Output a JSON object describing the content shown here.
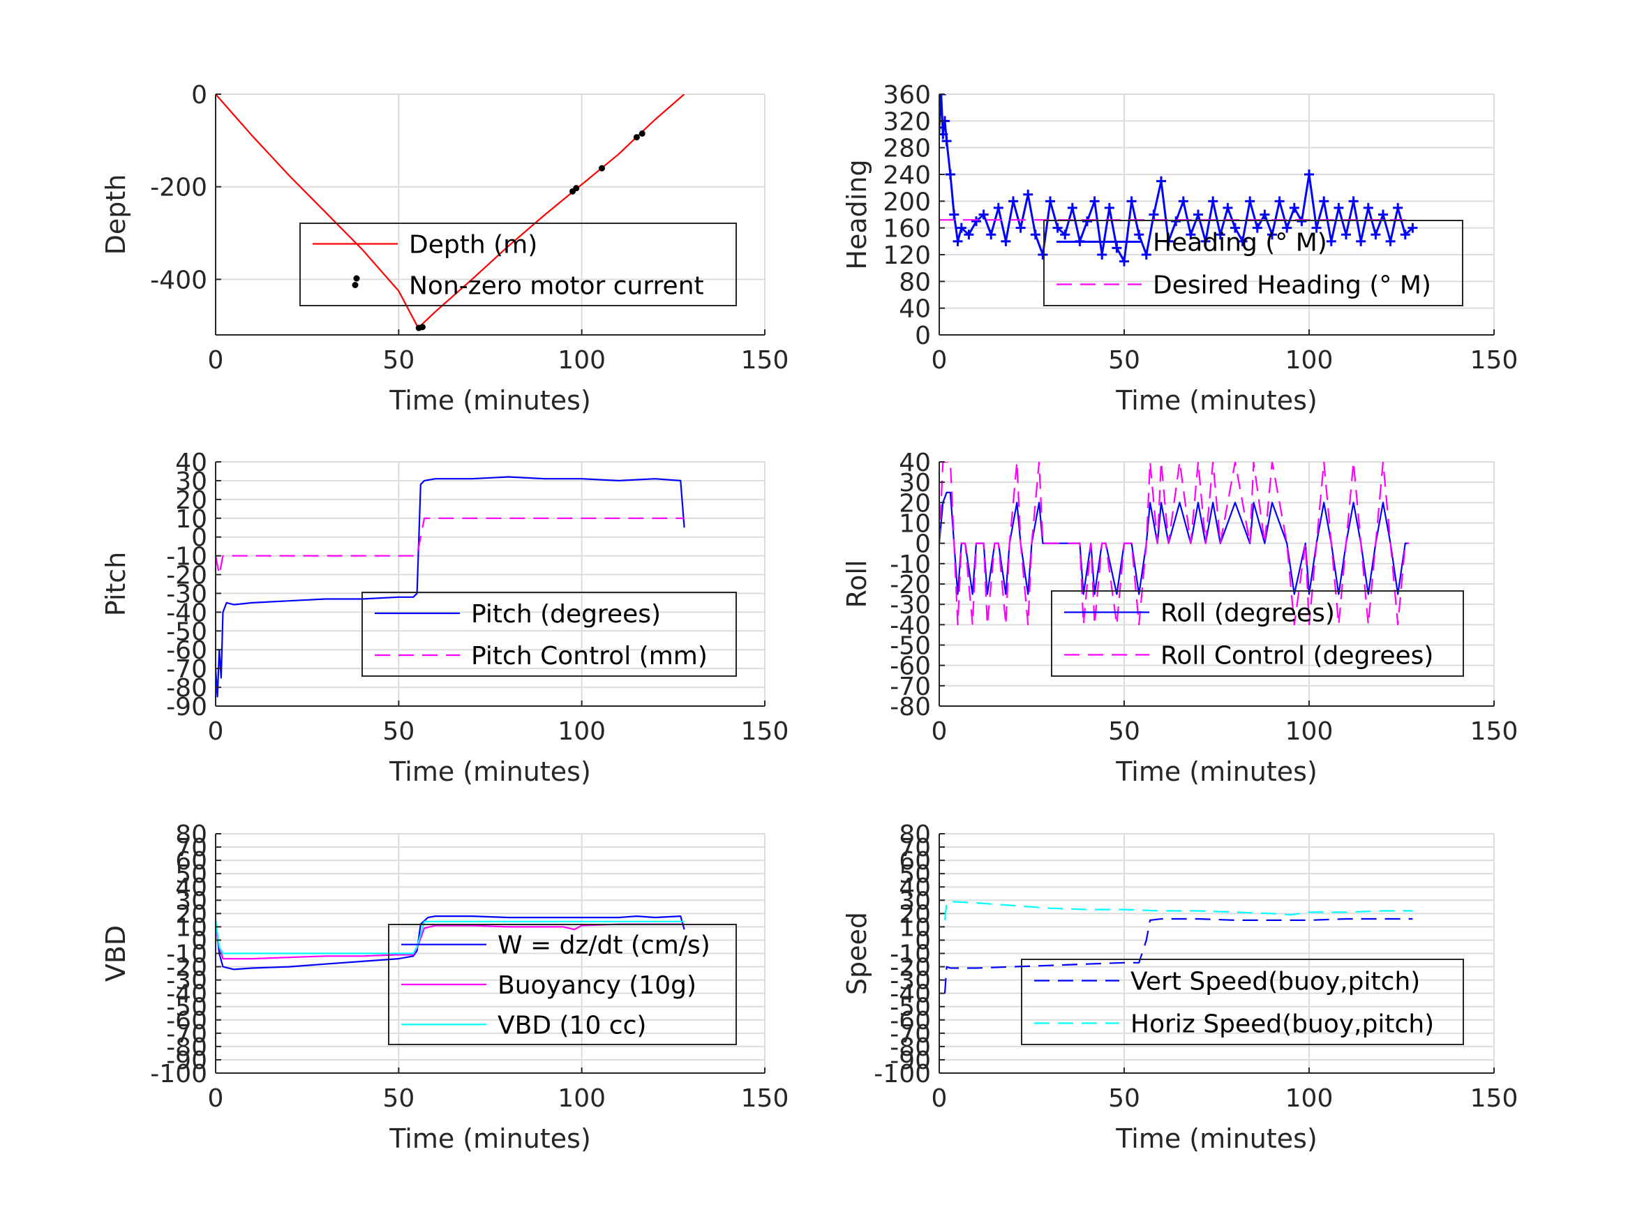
{
  "chart_data": [
    {
      "id": "depth",
      "type": "line",
      "xlabel": "Time (minutes)",
      "ylabel": "Depth",
      "xlim": [
        0,
        150
      ],
      "ylim": [
        -520,
        0
      ],
      "xticks": [
        0,
        50,
        100,
        150
      ],
      "yticks": [
        0,
        -200,
        -400
      ],
      "grid": true,
      "legend_position": "lower-right",
      "series": [
        {
          "name": "Depth (m)",
          "color": "#ff0000",
          "style": "solid",
          "x": [
            0,
            5,
            10,
            20,
            30,
            40,
            50,
            55,
            56,
            60,
            70,
            80,
            90,
            100,
            110,
            120,
            128
          ],
          "y": [
            0,
            -45,
            -90,
            -175,
            -255,
            -335,
            -425,
            -500,
            -500,
            -470,
            -400,
            -328,
            -260,
            -195,
            -130,
            -55,
            0
          ]
        },
        {
          "name": "Non-zero motor current",
          "color": "#000000",
          "style": "markers",
          "x": [
            38.5,
            55.5,
            56.5,
            97.5,
            98.5,
            105.5,
            115,
            116.5
          ],
          "y": [
            -398,
            -505,
            -503,
            -210,
            -203,
            -160,
            -93,
            -85
          ]
        }
      ]
    },
    {
      "id": "heading",
      "type": "line",
      "xlabel": "Time (minutes)",
      "ylabel": "Heading",
      "xlim": [
        0,
        150
      ],
      "ylim": [
        0,
        360
      ],
      "xticks": [
        0,
        50,
        100,
        150
      ],
      "yticks": [
        0,
        40,
        80,
        120,
        160,
        200,
        240,
        280,
        320,
        360
      ],
      "grid": true,
      "legend_position": "lower-right",
      "series": [
        {
          "name": "Heading (° M)",
          "color": "#0000ff",
          "style": "plus",
          "x": [
            0,
            0.5,
            1,
            1.5,
            2,
            3,
            4,
            5,
            6,
            8,
            10,
            12,
            14,
            16,
            18,
            20,
            22,
            24,
            26,
            28,
            30,
            32,
            34,
            36,
            38,
            40,
            42,
            44,
            46,
            48,
            50,
            52,
            54,
            56,
            58,
            60,
            62,
            64,
            66,
            68,
            70,
            72,
            74,
            76,
            78,
            80,
            82,
            84,
            86,
            88,
            90,
            92,
            94,
            96,
            98,
            100,
            102,
            104,
            106,
            108,
            110,
            112,
            114,
            116,
            118,
            120,
            122,
            124,
            126,
            128
          ],
          "y": [
            310,
            360,
            300,
            320,
            290,
            240,
            180,
            140,
            160,
            150,
            170,
            180,
            150,
            190,
            140,
            200,
            160,
            210,
            150,
            120,
            200,
            160,
            150,
            190,
            140,
            170,
            200,
            120,
            190,
            130,
            110,
            200,
            150,
            120,
            180,
            230,
            140,
            170,
            200,
            150,
            180,
            140,
            200,
            150,
            190,
            160,
            140,
            200,
            160,
            180,
            150,
            200,
            160,
            190,
            170,
            240,
            160,
            200,
            140,
            190,
            150,
            200,
            140,
            190,
            150,
            180,
            140,
            190,
            150,
            160
          ]
        },
        {
          "name": "Desired Heading (° M)",
          "color": "#ff00ff",
          "style": "dashed",
          "x": [
            0,
            128
          ],
          "y": [
            172,
            172
          ]
        }
      ]
    },
    {
      "id": "pitch",
      "type": "line",
      "xlabel": "Time (minutes)",
      "ylabel": "Pitch",
      "xlim": [
        0,
        150
      ],
      "ylim": [
        -90,
        40
      ],
      "xticks": [
        0,
        50,
        100,
        150
      ],
      "yticks": [
        40,
        30,
        20,
        10,
        0,
        -10,
        -20,
        -30,
        -40,
        -50,
        -60,
        -70,
        -80,
        -90
      ],
      "grid": true,
      "legend_position": "lower-right",
      "series": [
        {
          "name": "Pitch (degrees)",
          "color": "#0000ff",
          "style": "solid",
          "x": [
            0,
            0.5,
            1,
            1.5,
            2,
            3,
            5,
            10,
            20,
            30,
            40,
            50,
            54,
            55,
            56,
            57,
            60,
            70,
            80,
            90,
            100,
            110,
            120,
            127,
            128
          ],
          "y": [
            -70,
            -85,
            -60,
            -75,
            -40,
            -35,
            -36,
            -35,
            -34,
            -33,
            -33,
            -32,
            -32,
            -30,
            28,
            30,
            31,
            31,
            32,
            31,
            31,
            30,
            31,
            30,
            5
          ]
        },
        {
          "name": "Pitch Control (mm)",
          "color": "#ff00ff",
          "style": "dashed",
          "x": [
            0,
            1,
            2,
            55,
            56,
            57,
            128
          ],
          "y": [
            -10,
            -20,
            -10,
            -10,
            0,
            10,
            10
          ]
        }
      ]
    },
    {
      "id": "roll",
      "type": "line",
      "xlabel": "Time (minutes)",
      "ylabel": "Roll",
      "xlim": [
        0,
        150
      ],
      "ylim": [
        -80,
        40
      ],
      "xticks": [
        0,
        50,
        100,
        150
      ],
      "yticks": [
        40,
        30,
        20,
        10,
        0,
        -10,
        -20,
        -30,
        -40,
        -50,
        -60,
        -70,
        -80
      ],
      "grid": true,
      "legend_position": "lower-right",
      "series": [
        {
          "name": "Roll (degrees)",
          "color": "#0000ff",
          "style": "solid",
          "x": [
            0,
            1,
            2,
            3,
            4,
            5,
            6,
            7,
            9,
            10,
            12,
            13,
            15,
            16,
            18,
            19,
            21,
            22,
            24,
            25,
            27,
            28,
            30,
            35,
            38,
            39,
            41,
            42,
            44,
            45,
            48,
            50,
            52,
            54,
            56,
            57,
            59,
            60,
            62,
            65,
            68,
            70,
            72,
            74,
            76,
            80,
            84,
            85,
            88,
            90,
            94,
            96,
            99,
            100,
            102,
            104,
            106,
            108,
            110,
            112,
            114,
            116,
            118,
            120,
            122,
            124,
            126,
            127
          ],
          "y": [
            0,
            20,
            25,
            25,
            0,
            -25,
            0,
            0,
            -25,
            0,
            0,
            -25,
            0,
            0,
            -25,
            0,
            20,
            0,
            -25,
            0,
            20,
            0,
            0,
            0,
            0,
            -25,
            0,
            -25,
            0,
            0,
            -25,
            0,
            0,
            -25,
            0,
            20,
            0,
            20,
            0,
            20,
            0,
            20,
            0,
            20,
            0,
            20,
            0,
            20,
            0,
            20,
            0,
            -25,
            0,
            -25,
            0,
            20,
            0,
            -25,
            0,
            20,
            0,
            -25,
            0,
            20,
            0,
            -25,
            0,
            0
          ]
        },
        {
          "name": "Roll Control (degrees)",
          "color": "#ff00ff",
          "style": "dashed",
          "x": [
            0,
            1,
            2,
            3,
            4,
            5,
            6,
            7,
            9,
            10,
            12,
            13,
            15,
            16,
            18,
            19,
            21,
            22,
            24,
            25,
            27,
            28,
            30,
            35,
            38,
            39,
            41,
            42,
            44,
            45,
            48,
            50,
            52,
            54,
            56,
            57,
            59,
            60,
            62,
            65,
            68,
            70,
            72,
            74,
            76,
            80,
            84,
            85,
            88,
            90,
            94,
            96,
            99,
            100,
            102,
            104,
            106,
            108,
            110,
            112,
            114,
            116,
            118,
            120,
            122,
            124,
            126,
            127
          ],
          "y": [
            0,
            40,
            40,
            40,
            0,
            -40,
            0,
            0,
            -40,
            0,
            0,
            -40,
            0,
            0,
            -40,
            0,
            40,
            0,
            -40,
            0,
            40,
            0,
            0,
            0,
            0,
            -40,
            0,
            -40,
            0,
            0,
            -40,
            0,
            0,
            -40,
            0,
            40,
            0,
            40,
            0,
            40,
            0,
            40,
            0,
            40,
            0,
            40,
            0,
            40,
            0,
            40,
            0,
            -40,
            0,
            -40,
            0,
            40,
            0,
            -40,
            0,
            40,
            0,
            -40,
            0,
            40,
            0,
            -40,
            0,
            0
          ]
        }
      ]
    },
    {
      "id": "vbd",
      "type": "line",
      "xlabel": "Time (minutes)",
      "ylabel": "VBD",
      "xlim": [
        0,
        150
      ],
      "ylim": [
        -100,
        80
      ],
      "xticks": [
        0,
        50,
        100,
        150
      ],
      "yticks": [
        80,
        70,
        60,
        50,
        40,
        30,
        20,
        10,
        0,
        -10,
        -20,
        -30,
        -40,
        -50,
        -60,
        -70,
        -80,
        -90,
        -100
      ],
      "ytick_labels": [
        "80",
        "70",
        "60",
        "50",
        "40",
        "30",
        "20",
        "10",
        "0",
        "-10",
        "-20",
        "-30",
        "-40",
        "-50",
        "-60",
        "-70",
        "-80",
        "-90",
        "-100"
      ],
      "grid": true,
      "legend_position": "lower-right",
      "series": [
        {
          "name": "W = dz/dt (cm/s)",
          "color": "#0000ff",
          "style": "solid",
          "x": [
            0,
            1,
            2,
            5,
            10,
            20,
            30,
            40,
            50,
            54,
            55,
            56,
            58,
            60,
            70,
            80,
            90,
            100,
            110,
            115,
            120,
            127,
            128
          ],
          "y": [
            15,
            -10,
            -20,
            -22,
            -21,
            -20,
            -18,
            -16,
            -14,
            -12,
            -8,
            12,
            17,
            18,
            18,
            17,
            17,
            17,
            17,
            18,
            17,
            18,
            8
          ]
        },
        {
          "name": "Buoyancy (10g)",
          "color": "#ff00ff",
          "style": "solid",
          "x": [
            0,
            1,
            2,
            10,
            20,
            30,
            40,
            50,
            54,
            55,
            57,
            60,
            70,
            80,
            90,
            95,
            98,
            100,
            110,
            120,
            128
          ],
          "y": [
            10,
            -5,
            -14,
            -14,
            -13,
            -12,
            -12,
            -11,
            -11,
            -6,
            9,
            11,
            11,
            10,
            10,
            10,
            8,
            11,
            12,
            12,
            12
          ]
        },
        {
          "name": "VBD (10 cc)",
          "color": "#00ffff",
          "style": "solid",
          "x": [
            0,
            1,
            2,
            10,
            20,
            30,
            40,
            50,
            54,
            55,
            57,
            60,
            70,
            80,
            90,
            100,
            110,
            120,
            128
          ],
          "y": [
            15,
            -5,
            -10,
            -10,
            -10,
            -10,
            -10,
            -10,
            -10,
            -5,
            14,
            14,
            14,
            14,
            14,
            14,
            14,
            14,
            14
          ]
        }
      ]
    },
    {
      "id": "speed",
      "type": "line",
      "xlabel": "Time (minutes)",
      "ylabel": "Speed",
      "xlim": [
        0,
        150
      ],
      "ylim": [
        -100,
        80
      ],
      "xticks": [
        0,
        50,
        100,
        150
      ],
      "yticks": [
        80,
        70,
        60,
        50,
        40,
        30,
        20,
        10,
        0,
        -10,
        -20,
        -30,
        -40,
        -50,
        -60,
        -70,
        -80,
        -90,
        -100
      ],
      "ytick_labels": [
        "80",
        "70",
        "60",
        "50",
        "40",
        "30",
        "20",
        "10",
        "0",
        "-10",
        "-20",
        "-30",
        "-40",
        "-50",
        "-60",
        "-70",
        "-80",
        "-90",
        "-100"
      ],
      "grid": true,
      "legend_position": "lower-right",
      "series": [
        {
          "name": "Vert Speed(buoy,pitch)",
          "color": "#0000ff",
          "style": "dashed",
          "x": [
            1.5,
            2,
            3,
            10,
            20,
            30,
            40,
            50,
            54,
            56,
            57,
            60,
            70,
            80,
            90,
            100,
            110,
            120,
            128
          ],
          "y": [
            -40,
            -20,
            -21,
            -21,
            -20,
            -19,
            -18,
            -17,
            -17,
            0,
            15,
            16,
            16,
            15,
            15,
            15,
            16,
            16,
            16
          ]
        },
        {
          "name": "Horiz Speed(buoy,pitch)",
          "color": "#00ffff",
          "style": "dashed",
          "x": [
            1.5,
            2,
            3,
            10,
            20,
            30,
            40,
            50,
            60,
            70,
            80,
            90,
            95,
            100,
            110,
            120,
            128
          ],
          "y": [
            15,
            28,
            29,
            28,
            26,
            24,
            23,
            23,
            22,
            22,
            21,
            20,
            19,
            21,
            21,
            22,
            22
          ]
        }
      ]
    }
  ]
}
